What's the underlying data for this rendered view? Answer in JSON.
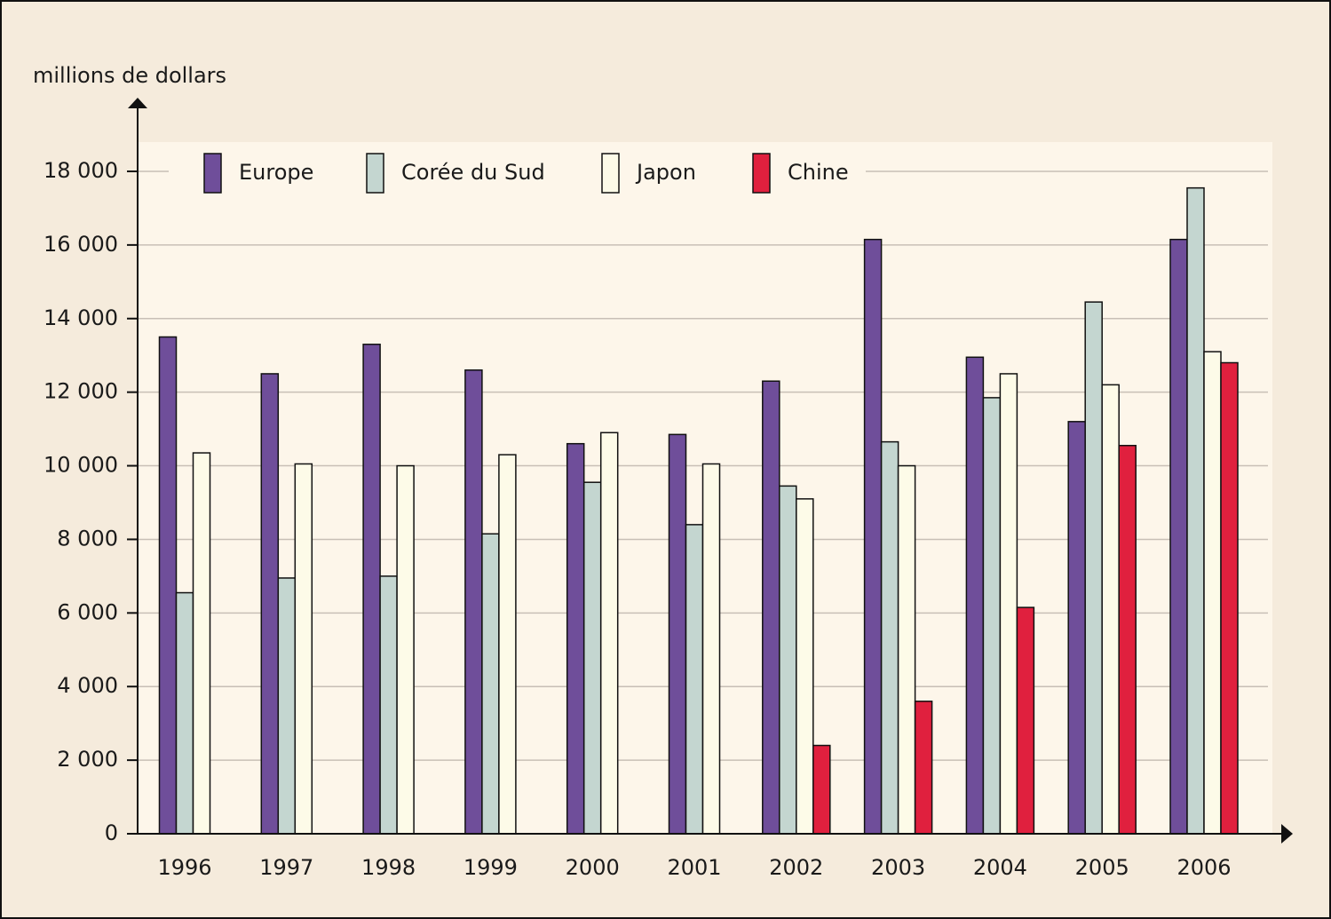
{
  "chart_data": {
    "type": "bar",
    "y_label": "millions de dollars",
    "categories": [
      "1996",
      "1997",
      "1998",
      "1999",
      "2000",
      "2001",
      "2002",
      "2003",
      "2004",
      "2005",
      "2006"
    ],
    "series": [
      {
        "name": "Europe",
        "color": "#6f4e9a",
        "values": [
          13500,
          12500,
          13300,
          12600,
          10600,
          10850,
          12300,
          16150,
          12950,
          11200,
          16150
        ]
      },
      {
        "name": "Corée du Sud",
        "color": "#c4d6d0",
        "values": [
          6550,
          6950,
          7000,
          8150,
          9550,
          8400,
          9450,
          10650,
          11850,
          14450,
          17550
        ]
      },
      {
        "name": "Japon",
        "color": "#fdfbe8",
        "values": [
          10350,
          10050,
          10000,
          10300,
          10900,
          10050,
          9100,
          10000,
          12500,
          12200,
          13100
        ]
      },
      {
        "name": "Chine",
        "color": "#e0203e",
        "values": [
          null,
          null,
          null,
          null,
          null,
          null,
          2400,
          3600,
          6150,
          10550,
          12800
        ]
      }
    ],
    "ylim": [
      0,
      18000
    ],
    "yticks": [
      0,
      {
        "value": 2000,
        "label": "2 000"
      },
      {
        "value": 4000,
        "label": "4 000"
      },
      {
        "value": 6000,
        "label": "6 000"
      },
      {
        "value": 8000,
        "label": "8 000"
      },
      {
        "value": 10000,
        "label": "10 000"
      },
      {
        "value": 12000,
        "label": "12 000"
      },
      {
        "value": 14000,
        "label": "14 000"
      },
      {
        "value": 16000,
        "label": "16 000"
      },
      {
        "value": 18000,
        "label": "18 000"
      }
    ],
    "grid": true
  }
}
